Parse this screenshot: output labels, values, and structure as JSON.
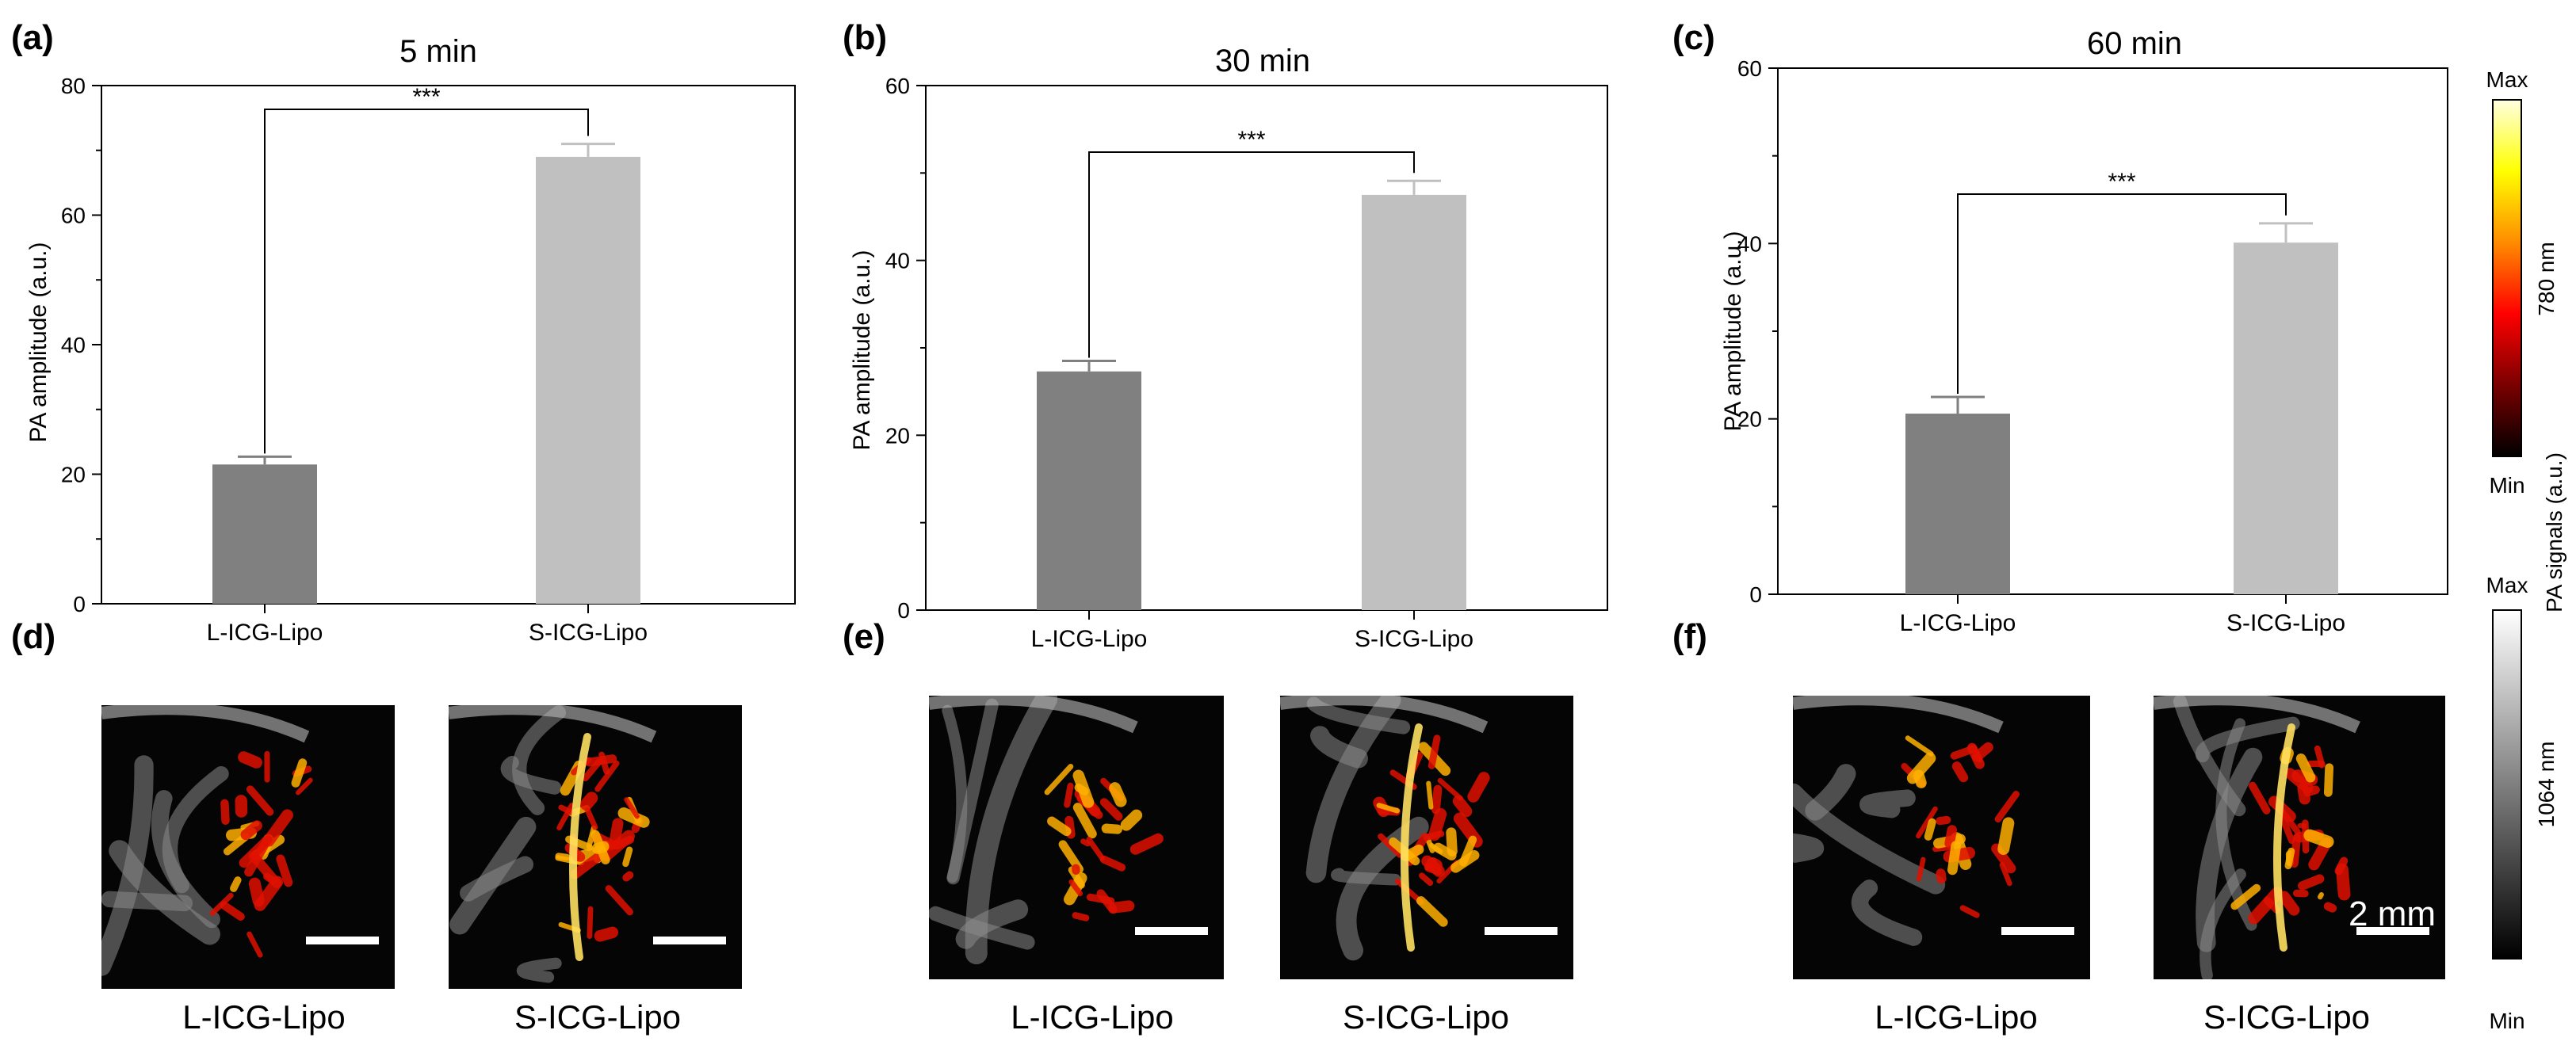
{
  "chart_data": [
    {
      "panel": "(a)",
      "type": "bar",
      "title": "5 min",
      "ylabel": "PA amplitude (a.u.)",
      "categories": [
        "L-ICG-Lipo",
        "S-ICG-Lipo"
      ],
      "values": [
        21.5,
        69.0
      ],
      "errors": [
        1.2,
        2.0
      ],
      "ylim": [
        0,
        80
      ],
      "yticks": [
        0,
        20,
        40,
        60,
        80
      ],
      "significance": "***",
      "bar_colors": [
        "#808080",
        "#c0c0c0"
      ]
    },
    {
      "panel": "(b)",
      "type": "bar",
      "title": "30 min",
      "ylabel": "PA amplitude (a.u.)",
      "categories": [
        "L-ICG-Lipo",
        "S-ICG-Lipo"
      ],
      "values": [
        27.3,
        47.5
      ],
      "errors": [
        1.2,
        1.6
      ],
      "ylim": [
        0,
        60
      ],
      "yticks": [
        0,
        20,
        40,
        60
      ],
      "significance": "***",
      "bar_colors": [
        "#808080",
        "#c0c0c0"
      ]
    },
    {
      "panel": "(c)",
      "type": "bar",
      "title": "60 min",
      "ylabel": "PA amplitude (a.u.)",
      "categories": [
        "L-ICG-Lipo",
        "S-ICG-Lipo"
      ],
      "values": [
        20.6,
        40.1
      ],
      "errors": [
        1.9,
        2.2
      ],
      "ylim": [
        0,
        60
      ],
      "yticks": [
        0,
        20,
        40,
        60
      ],
      "significance": "***",
      "bar_colors": [
        "#808080",
        "#c0c0c0"
      ]
    }
  ],
  "image_panels": [
    {
      "panel": "(d)",
      "images": [
        {
          "label": "L-ICG-Lipo",
          "intensity": 0.55
        },
        {
          "label": "S-ICG-Lipo",
          "intensity": 1.0
        }
      ]
    },
    {
      "panel": "(e)",
      "images": [
        {
          "label": "L-ICG-Lipo",
          "intensity": 0.6
        },
        {
          "label": "S-ICG-Lipo",
          "intensity": 0.85
        }
      ]
    },
    {
      "panel": "(f)",
      "images": [
        {
          "label": "L-ICG-Lipo",
          "intensity": 0.5
        },
        {
          "label": "S-ICG-Lipo",
          "intensity": 0.75
        }
      ]
    }
  ],
  "scale_bar": "2 mm",
  "colorbars": {
    "axis_label": "PA signals (a.u.)",
    "hot": {
      "max": "Max",
      "min": "Min",
      "label": "780 nm",
      "colors": [
        "#000000",
        "#7a0000",
        "#ff0000",
        "#ff8c00",
        "#ffff00",
        "#ffffe0"
      ]
    },
    "gray": {
      "max": "Max",
      "min": "Min",
      "label": "1064 nm",
      "colors": [
        "#000000",
        "#ffffff"
      ]
    }
  }
}
